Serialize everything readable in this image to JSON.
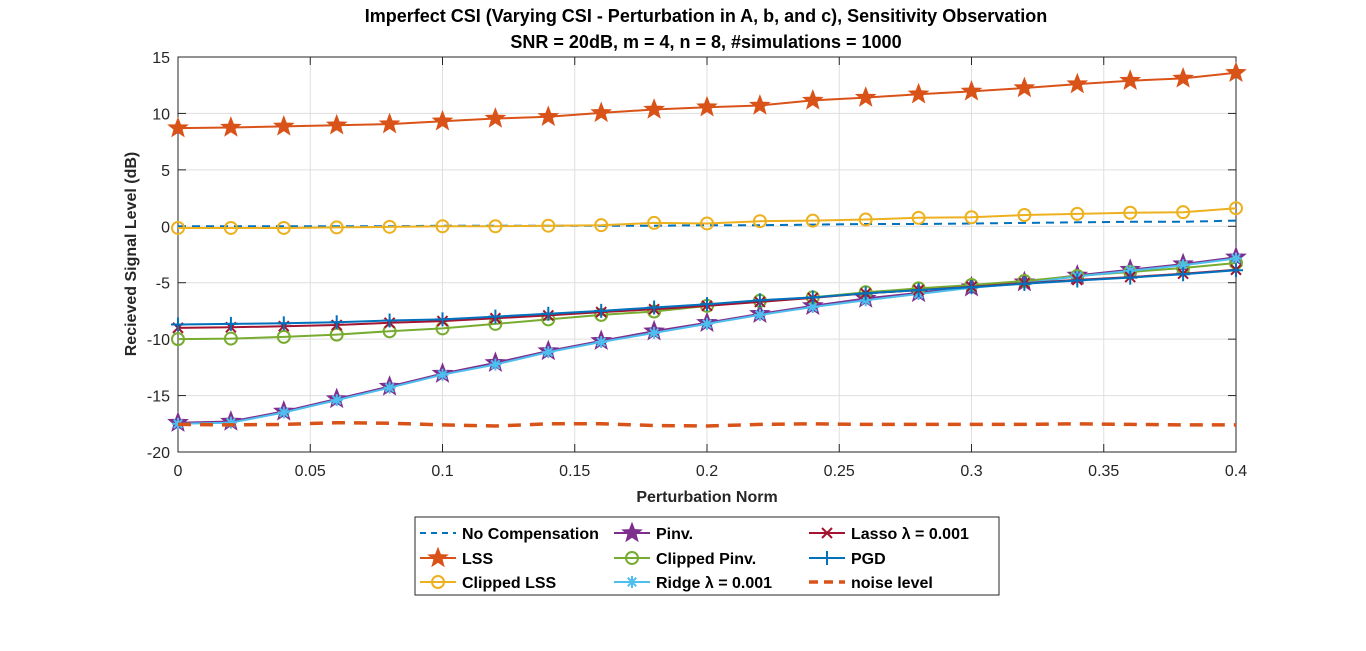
{
  "chart_data": {
    "type": "line",
    "title": "Imperfect CSI (Varying CSI - Perturbation in A, b, and c), Sensitivity Observation",
    "subtitle": "SNR = 20dB, m = 4, n = 8, #simulations = 1000",
    "xlabel": "Perturbation Norm",
    "ylabel": "Recieved Signal Level (dB)",
    "xlim": [
      0,
      0.4
    ],
    "ylim": [
      -20,
      15
    ],
    "xticks": [
      0,
      0.05,
      0.1,
      0.15,
      0.2,
      0.25,
      0.3,
      0.35,
      0.4
    ],
    "xtick_labels": [
      "0",
      "0.05",
      "0.1",
      "0.15",
      "0.2",
      "0.25",
      "0.3",
      "0.35",
      "0.4"
    ],
    "yticks": [
      -20,
      -15,
      -10,
      -5,
      0,
      5,
      10,
      15
    ],
    "ytick_labels": [
      "-20",
      "-15",
      "-10",
      "-5",
      "0",
      "5",
      "10",
      "15"
    ],
    "grid": true,
    "legend_position": "bottom-outside",
    "x": [
      0,
      0.02,
      0.04,
      0.06,
      0.08,
      0.1,
      0.12,
      0.14,
      0.16,
      0.18,
      0.2,
      0.22,
      0.24,
      0.26,
      0.28,
      0.3,
      0.32,
      0.34,
      0.36,
      0.38,
      0.4
    ],
    "series": [
      {
        "name": "No Compensation",
        "color": "#0072bd",
        "style": "dashed-thin",
        "marker": "none",
        "values": [
          0.0,
          0.0,
          0.0,
          0.0,
          0.0,
          0.05,
          0.05,
          0.05,
          0.05,
          0.05,
          0.1,
          0.1,
          0.15,
          0.2,
          0.2,
          0.25,
          0.3,
          0.35,
          0.4,
          0.4,
          0.5
        ]
      },
      {
        "name": "LSS",
        "color": "#d95319",
        "style": "solid",
        "marker": "star",
        "values": [
          8.7,
          8.75,
          8.85,
          8.95,
          9.05,
          9.3,
          9.55,
          9.7,
          10.05,
          10.35,
          10.55,
          10.7,
          11.15,
          11.4,
          11.7,
          11.95,
          12.25,
          12.6,
          12.9,
          13.1,
          13.6
        ]
      },
      {
        "name": "Clipped LSS",
        "color": "#edb120",
        "style": "solid",
        "marker": "circle",
        "values": [
          -0.15,
          -0.15,
          -0.15,
          -0.1,
          -0.05,
          0.0,
          0.0,
          0.05,
          0.1,
          0.3,
          0.25,
          0.45,
          0.5,
          0.6,
          0.75,
          0.8,
          1.0,
          1.1,
          1.2,
          1.25,
          1.6
        ]
      },
      {
        "name": "Pinv.",
        "color": "#7e2f8e",
        "style": "solid",
        "marker": "star",
        "values": [
          -17.4,
          -17.3,
          -16.4,
          -15.3,
          -14.2,
          -13.05,
          -12.1,
          -11.05,
          -10.15,
          -9.3,
          -8.55,
          -7.75,
          -7.05,
          -6.4,
          -5.9,
          -5.4,
          -4.95,
          -4.35,
          -3.85,
          -3.35,
          -2.75
        ]
      },
      {
        "name": "Clipped Pinv.",
        "color": "#77ac30",
        "style": "solid",
        "marker": "circle",
        "values": [
          -10.0,
          -9.95,
          -9.8,
          -9.6,
          -9.3,
          -9.05,
          -8.65,
          -8.25,
          -7.85,
          -7.55,
          -7.05,
          -6.6,
          -6.3,
          -5.85,
          -5.5,
          -5.2,
          -4.85,
          -4.4,
          -4.05,
          -3.7,
          -3.25
        ]
      },
      {
        "name": "Ridge λ = 0.001",
        "color": "#4dbeee",
        "style": "solid",
        "marker": "asterisk",
        "values": [
          -17.5,
          -17.4,
          -16.5,
          -15.4,
          -14.3,
          -13.15,
          -12.25,
          -11.15,
          -10.25,
          -9.45,
          -8.65,
          -7.85,
          -7.15,
          -6.55,
          -6.0,
          -5.45,
          -5.05,
          -4.45,
          -3.95,
          -3.45,
          -2.85
        ]
      },
      {
        "name": "Lasso λ = 0.001",
        "color": "#a2142f",
        "style": "solid",
        "marker": "x",
        "values": [
          -9.0,
          -8.95,
          -8.85,
          -8.75,
          -8.55,
          -8.4,
          -8.15,
          -7.9,
          -7.6,
          -7.35,
          -7.05,
          -6.7,
          -6.35,
          -5.95,
          -5.65,
          -5.35,
          -5.05,
          -4.75,
          -4.5,
          -4.2,
          -3.85
        ]
      },
      {
        "name": "PGD",
        "color": "#0072bd",
        "style": "solid",
        "marker": "plus",
        "values": [
          -8.7,
          -8.65,
          -8.6,
          -8.5,
          -8.35,
          -8.25,
          -8.0,
          -7.75,
          -7.5,
          -7.2,
          -6.9,
          -6.55,
          -6.3,
          -5.95,
          -5.65,
          -5.4,
          -5.1,
          -4.8,
          -4.55,
          -4.25,
          -3.9
        ]
      },
      {
        "name": "noise level",
        "color": "#d95319",
        "style": "dashed-thick",
        "marker": "none",
        "values": [
          -17.55,
          -17.6,
          -17.55,
          -17.4,
          -17.45,
          -17.6,
          -17.7,
          -17.5,
          -17.5,
          -17.65,
          -17.7,
          -17.55,
          -17.5,
          -17.55,
          -17.55,
          -17.55,
          -17.55,
          -17.5,
          -17.55,
          -17.6,
          -17.6
        ]
      }
    ],
    "legend_entries": [
      "No Compensation",
      "Pinv.",
      "Lasso λ = 0.001",
      "LSS",
      "Clipped Pinv.",
      "PGD",
      "Clipped LSS",
      "Ridge λ = 0.001",
      "noise level"
    ]
  }
}
